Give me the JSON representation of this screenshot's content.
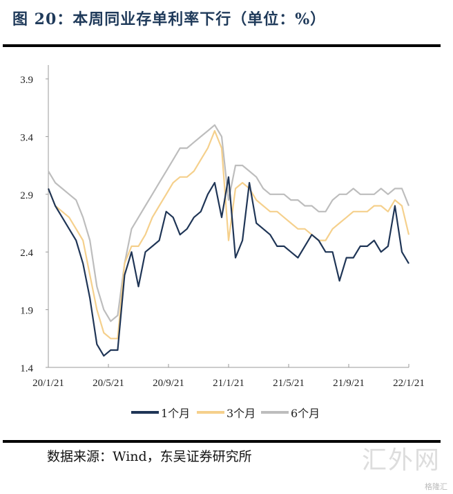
{
  "title": "图 20：本周同业存单利率下行（单位：%）",
  "source": "数据来源：Wind，东吴证券研究所",
  "watermark": "汇外网",
  "watermark_sub": "格隆汇",
  "chart_data": {
    "type": "line",
    "title": "本周同业存单利率下行（单位：%）",
    "xlabel": "",
    "ylabel": "%",
    "ylim": [
      1.4,
      3.9
    ],
    "yticks": [
      "1.4",
      "1.9",
      "2.4",
      "2.9",
      "3.4",
      "3.9"
    ],
    "xticks": [
      "20/1/21",
      "20/5/21",
      "20/9/21",
      "21/1/21",
      "21/5/21",
      "21/9/21",
      "22/1/21"
    ],
    "x_months_range": [
      0,
      24
    ],
    "grid": false,
    "legend": "bottom",
    "series": [
      {
        "name": "1个月",
        "color": "#1f3556",
        "values": [
          2.95,
          2.8,
          2.7,
          2.6,
          2.5,
          2.3,
          2.0,
          1.6,
          1.5,
          1.55,
          1.55,
          2.2,
          2.4,
          2.1,
          2.4,
          2.45,
          2.5,
          2.75,
          2.7,
          2.55,
          2.6,
          2.7,
          2.75,
          2.9,
          3.0,
          2.7,
          3.05,
          2.35,
          2.5,
          3.0,
          2.65,
          2.6,
          2.55,
          2.45,
          2.45,
          2.4,
          2.35,
          2.45,
          2.55,
          2.5,
          2.4,
          2.4,
          2.15,
          2.35,
          2.35,
          2.45,
          2.45,
          2.5,
          2.4,
          2.45,
          2.8,
          2.4,
          2.3
        ]
      },
      {
        "name": "3个月",
        "color": "#f5d08c",
        "values": [
          2.95,
          2.8,
          2.75,
          2.7,
          2.6,
          2.5,
          2.2,
          1.9,
          1.7,
          1.65,
          1.65,
          2.3,
          2.45,
          2.45,
          2.55,
          2.7,
          2.8,
          2.9,
          3.0,
          3.05,
          3.05,
          3.1,
          3.2,
          3.3,
          3.45,
          3.3,
          2.5,
          2.95,
          3.0,
          2.95,
          2.85,
          2.8,
          2.75,
          2.75,
          2.7,
          2.65,
          2.6,
          2.6,
          2.55,
          2.5,
          2.5,
          2.6,
          2.65,
          2.7,
          2.75,
          2.75,
          2.75,
          2.8,
          2.8,
          2.75,
          2.85,
          2.8,
          2.55
        ]
      },
      {
        "name": "6个月",
        "color": "#bdbdbd",
        "values": [
          3.1,
          3.0,
          2.95,
          2.9,
          2.85,
          2.7,
          2.5,
          2.1,
          1.9,
          1.8,
          1.85,
          2.3,
          2.6,
          2.7,
          2.8,
          2.9,
          3.0,
          3.1,
          3.2,
          3.3,
          3.3,
          3.35,
          3.4,
          3.45,
          3.5,
          3.4,
          2.85,
          3.15,
          3.15,
          3.1,
          3.05,
          2.95,
          2.9,
          2.9,
          2.9,
          2.85,
          2.85,
          2.8,
          2.8,
          2.75,
          2.75,
          2.85,
          2.9,
          2.9,
          2.95,
          2.9,
          2.9,
          2.9,
          2.95,
          2.9,
          2.95,
          2.95,
          2.8
        ]
      }
    ]
  }
}
